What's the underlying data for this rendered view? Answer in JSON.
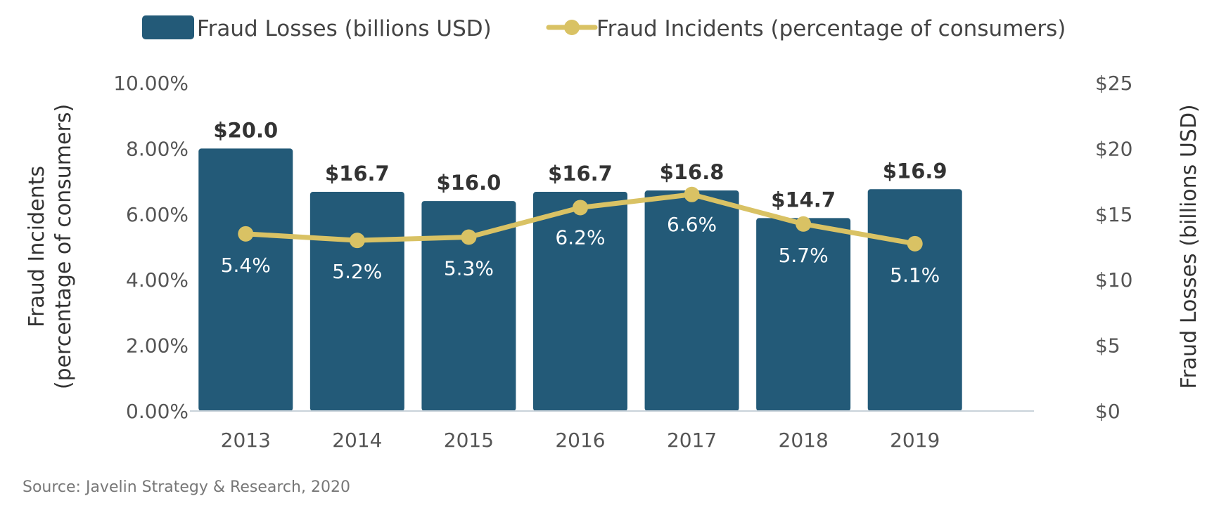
{
  "chart_data": {
    "type": "bar",
    "categories": [
      "2013",
      "2014",
      "2015",
      "2016",
      "2017",
      "2018",
      "2019"
    ],
    "series": [
      {
        "name": "Fraud Losses (billions USD)",
        "type": "bar",
        "axis": "right",
        "values": [
          20.0,
          16.7,
          16.0,
          16.7,
          16.8,
          14.7,
          16.9
        ],
        "labels": [
          "$20.0",
          "$16.7",
          "$16.0",
          "$16.7",
          "$16.8",
          "$14.7",
          "$16.9"
        ],
        "color": "#235a78"
      },
      {
        "name": "Fraud Incidents (percentage of consumers)",
        "type": "line",
        "axis": "left",
        "values": [
          5.4,
          5.2,
          5.3,
          6.2,
          6.6,
          5.7,
          5.1
        ],
        "labels": [
          "5.4%",
          "5.2%",
          "5.3%",
          "6.2%",
          "6.6%",
          "5.7%",
          "5.1%"
        ],
        "color": "#d9c264"
      }
    ],
    "left_axis": {
      "label": "Fraud Incidents\n(percentage of consumers)",
      "range": [
        0,
        10
      ],
      "ticks": [
        0,
        2,
        4,
        6,
        8,
        10
      ],
      "tick_labels": [
        "0.00%",
        "2.00%",
        "4.00%",
        "6.00%",
        "8.00%",
        "10.00%"
      ]
    },
    "right_axis": {
      "label": "Fraud Losses (billions USD)",
      "range": [
        0,
        25
      ],
      "ticks": [
        0,
        5,
        10,
        15,
        20,
        25
      ],
      "tick_labels": [
        "$0",
        "$5",
        "$10",
        "$15",
        "$20",
        "$25"
      ]
    },
    "legend_position": "top",
    "grid": false
  },
  "source": "Source:  Javelin Strategy & Research, 2020"
}
